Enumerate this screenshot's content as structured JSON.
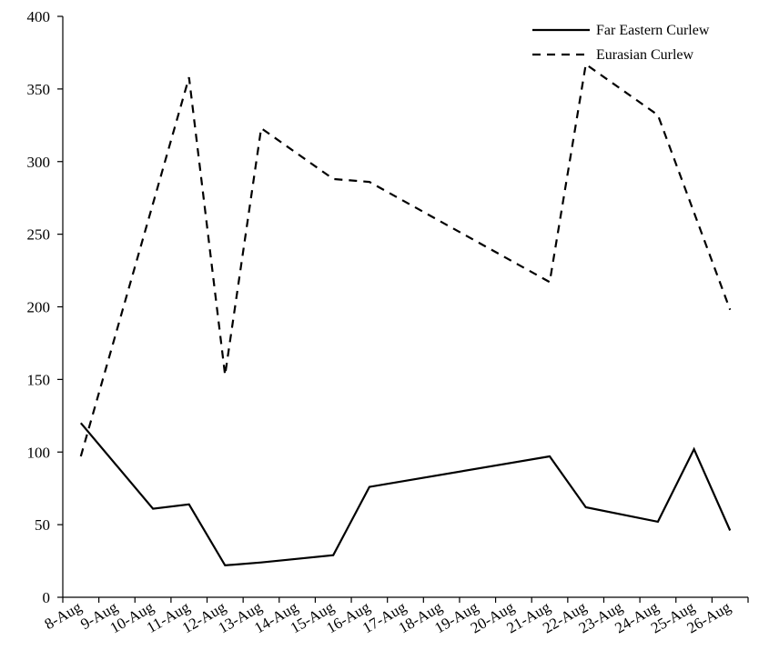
{
  "chart_data": {
    "type": "line",
    "categories": [
      "8-Aug",
      "9-Aug",
      "10-Aug",
      "11-Aug",
      "12-Aug",
      "13-Aug",
      "14-Aug",
      "15-Aug",
      "16-Aug",
      "17-Aug",
      "18-Aug",
      "19-Aug",
      "20-Aug",
      "21-Aug",
      "22-Aug",
      "23-Aug",
      "24-Aug",
      "25-Aug",
      "26-Aug"
    ],
    "series": [
      {
        "name": "Far Eastern Curlew",
        "style": "solid",
        "color": "#000000",
        "points": [
          {
            "x": "8-Aug",
            "y": 120
          },
          {
            "x": "10-Aug",
            "y": 61
          },
          {
            "x": "11-Aug",
            "y": 64
          },
          {
            "x": "12-Aug",
            "y": 22
          },
          {
            "x": "13-Aug",
            "y": 24
          },
          {
            "x": "15-Aug",
            "y": 29
          },
          {
            "x": "16-Aug",
            "y": 76
          },
          {
            "x": "21-Aug",
            "y": 97
          },
          {
            "x": "22-Aug",
            "y": 62
          },
          {
            "x": "24-Aug",
            "y": 52
          },
          {
            "x": "25-Aug",
            "y": 102
          },
          {
            "x": "26-Aug",
            "y": 46
          }
        ]
      },
      {
        "name": "Eurasian Curlew",
        "style": "dashed",
        "color": "#000000",
        "points": [
          {
            "x": "8-Aug",
            "y": 97
          },
          {
            "x": "11-Aug",
            "y": 358
          },
          {
            "x": "12-Aug",
            "y": 153
          },
          {
            "x": "13-Aug",
            "y": 323
          },
          {
            "x": "15-Aug",
            "y": 288
          },
          {
            "x": "16-Aug",
            "y": 286
          },
          {
            "x": "21-Aug",
            "y": 217
          },
          {
            "x": "22-Aug",
            "y": 367
          },
          {
            "x": "24-Aug",
            "y": 332
          },
          {
            "x": "26-Aug",
            "y": 198
          }
        ]
      }
    ],
    "yticks": [
      0,
      50,
      100,
      150,
      200,
      250,
      300,
      350,
      400
    ],
    "ylim": [
      0,
      400
    ],
    "grid": false,
    "legend_position": "top-right"
  }
}
